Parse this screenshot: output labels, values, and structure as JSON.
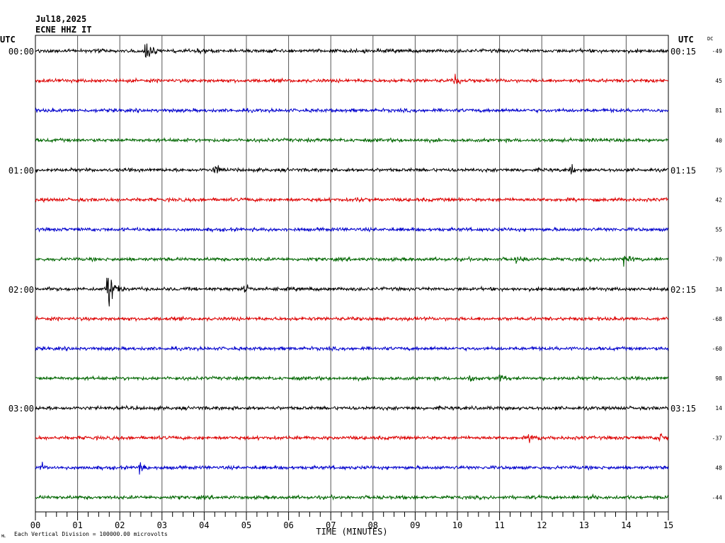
{
  "header": {
    "date": "Jul18,2025",
    "station": "ECNE HHZ IT"
  },
  "chart_data": {
    "type": "line",
    "title": "ECNE HHZ IT",
    "date": "Jul18,2025",
    "xlabel": "TIME (MINUTES)",
    "xlim": [
      0,
      15
    ],
    "x_ticks": [
      "00",
      "01",
      "02",
      "03",
      "04",
      "05",
      "06",
      "07",
      "08",
      "09",
      "10",
      "11",
      "12",
      "13",
      "14",
      "15"
    ],
    "left_axis_title": "UTC",
    "right_axis_title": "UTC",
    "dc_title": "DC",
    "footer_note": "Each Vertical Division = 100000.00 microvolts",
    "corner_mark": "ML",
    "trace_colors": [
      "#000000",
      "#dd0000",
      "#0000cc",
      "#006600"
    ],
    "left_time_labels": [
      "00:00",
      "01:00",
      "02:00",
      "03:00"
    ],
    "right_time_labels": [
      "00:15",
      "01:15",
      "02:15",
      "03:15"
    ],
    "dc_values": [
      "-49",
      "45",
      "81",
      "40",
      "75",
      "42",
      "55",
      "-70",
      "34",
      "-68",
      "-60",
      "98",
      "14",
      "-37",
      "48",
      "-44"
    ],
    "events": [
      {
        "trace": 0,
        "minute": 2.6,
        "amp": 1.0
      },
      {
        "trace": 0,
        "minute": 3.85,
        "amp": 0.35
      },
      {
        "trace": 1,
        "minute": 9.95,
        "amp": 0.6
      },
      {
        "trace": 4,
        "minute": 4.25,
        "amp": 0.45
      },
      {
        "trace": 4,
        "minute": 12.7,
        "amp": 0.3
      },
      {
        "trace": 5,
        "minute": 7.6,
        "amp": 0.25
      },
      {
        "trace": 7,
        "minute": 11.4,
        "amp": 0.3
      },
      {
        "trace": 7,
        "minute": 13.95,
        "amp": 0.45
      },
      {
        "trace": 8,
        "minute": 1.72,
        "amp": 1.6
      },
      {
        "trace": 8,
        "minute": 4.95,
        "amp": 0.45
      },
      {
        "trace": 11,
        "minute": 10.3,
        "amp": 0.35
      },
      {
        "trace": 11,
        "minute": 11.0,
        "amp": 0.3
      },
      {
        "trace": 13,
        "minute": 11.7,
        "amp": 0.5
      },
      {
        "trace": 13,
        "minute": 14.8,
        "amp": 0.45
      },
      {
        "trace": 14,
        "minute": 0.15,
        "amp": 0.35
      },
      {
        "trace": 14,
        "minute": 2.45,
        "amp": 0.4
      },
      {
        "trace": 15,
        "minute": 13.1,
        "amp": 0.25
      }
    ]
  }
}
